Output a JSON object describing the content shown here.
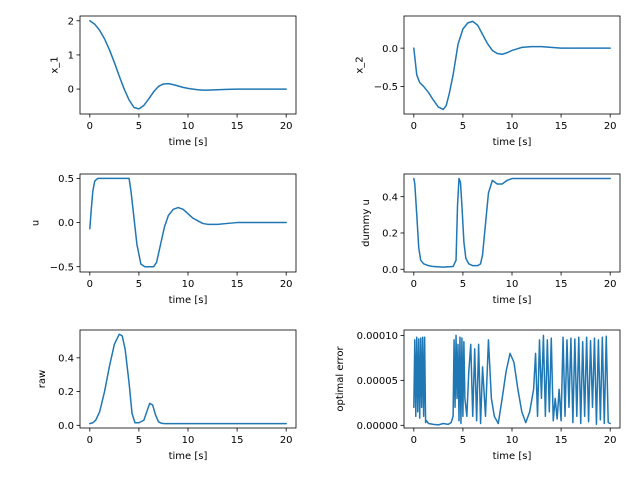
{
  "line_color": "#1f77b4",
  "chart_data": [
    {
      "type": "line",
      "xlabel": "time [s]",
      "ylabel": "x_1",
      "xlim": [
        -1,
        21
      ],
      "ylim": [
        -0.73,
        2.14
      ],
      "xticks": [
        0,
        5,
        10,
        15,
        20
      ],
      "yticks": [
        0,
        1,
        2
      ],
      "grid": false,
      "series": [
        {
          "name": "x_1",
          "x": [
            0,
            0.5,
            1,
            1.5,
            2,
            2.5,
            3,
            3.5,
            4,
            4.5,
            5,
            5.5,
            6,
            6.5,
            7,
            7.5,
            8,
            8.5,
            9,
            9.5,
            10,
            10.5,
            11,
            11.5,
            12,
            13,
            14,
            15,
            16,
            17,
            18,
            19,
            20
          ],
          "y": [
            2.0,
            1.9,
            1.72,
            1.47,
            1.15,
            0.78,
            0.38,
            0.0,
            -0.32,
            -0.54,
            -0.58,
            -0.48,
            -0.29,
            -0.08,
            0.08,
            0.15,
            0.16,
            0.13,
            0.09,
            0.05,
            0.02,
            0.0,
            -0.02,
            -0.03,
            -0.03,
            -0.02,
            -0.01,
            0.0,
            0.0,
            0.0,
            0.0,
            0.0,
            0.0
          ]
        }
      ]
    },
    {
      "type": "line",
      "xlabel": "time [s]",
      "ylabel": "x_2",
      "xlim": [
        -1,
        21
      ],
      "ylim": [
        -0.86,
        0.42
      ],
      "xticks": [
        0,
        5,
        10,
        15,
        20
      ],
      "yticks": [
        -0.5,
        0.0
      ],
      "ytick_labels": [
        "−0.5",
        "0.0"
      ],
      "grid": false,
      "series": [
        {
          "name": "x_2",
          "x": [
            0,
            0.3,
            0.6,
            1,
            1.5,
            2,
            2.5,
            3,
            3.3,
            3.6,
            4,
            4.5,
            5,
            5.5,
            6,
            6.5,
            7,
            7.5,
            8,
            8.5,
            9,
            9.5,
            10,
            10.5,
            11,
            12,
            13,
            14,
            15,
            16,
            17,
            18,
            19,
            20
          ],
          "y": [
            0.0,
            -0.35,
            -0.45,
            -0.5,
            -0.58,
            -0.68,
            -0.77,
            -0.8,
            -0.75,
            -0.6,
            -0.35,
            0.05,
            0.25,
            0.33,
            0.35,
            0.3,
            0.18,
            0.06,
            -0.03,
            -0.07,
            -0.08,
            -0.06,
            -0.03,
            -0.01,
            0.01,
            0.02,
            0.02,
            0.01,
            0.0,
            0.0,
            0.0,
            0.0,
            0.0,
            0.0
          ]
        }
      ]
    },
    {
      "type": "line",
      "xlabel": "time [s]",
      "ylabel": "u",
      "xlim": [
        -1,
        21
      ],
      "ylim": [
        -0.56,
        0.55
      ],
      "xticks": [
        0,
        5,
        10,
        15,
        20
      ],
      "yticks": [
        -0.5,
        0.0,
        0.5
      ],
      "ytick_labels": [
        "−0.5",
        "0.0",
        "0.5"
      ],
      "grid": false,
      "series": [
        {
          "name": "u",
          "x": [
            0,
            0.15,
            0.3,
            0.5,
            0.8,
            1,
            2,
            3,
            4,
            4.2,
            4.5,
            4.8,
            5.2,
            5.6,
            6,
            6.5,
            6.8,
            7.2,
            7.6,
            8,
            8.5,
            9,
            9.5,
            10,
            10.5,
            11,
            11.5,
            12,
            13,
            14,
            15,
            16,
            17,
            18,
            19,
            20
          ],
          "y": [
            -0.07,
            0.15,
            0.35,
            0.47,
            0.5,
            0.5,
            0.5,
            0.5,
            0.5,
            0.35,
            0.05,
            -0.25,
            -0.47,
            -0.5,
            -0.5,
            -0.5,
            -0.45,
            -0.25,
            -0.05,
            0.08,
            0.15,
            0.17,
            0.15,
            0.1,
            0.05,
            0.02,
            -0.01,
            -0.02,
            -0.02,
            -0.01,
            0.0,
            0.0,
            0.0,
            0.0,
            0.0,
            0.0
          ]
        }
      ]
    },
    {
      "type": "line",
      "xlabel": "time [s]",
      "ylabel": "dummy u",
      "xlim": [
        -1,
        21
      ],
      "ylim": [
        -0.015,
        0.525
      ],
      "xticks": [
        0,
        5,
        10,
        15,
        20
      ],
      "yticks": [
        0.0,
        0.2,
        0.4
      ],
      "ytick_labels": [
        "0.0",
        "0.2",
        "0.4"
      ],
      "grid": false,
      "series": [
        {
          "name": "dummy u",
          "x": [
            0,
            0.1,
            0.3,
            0.5,
            0.7,
            1,
            1.5,
            2,
            3,
            4,
            4.3,
            4.45,
            4.6,
            4.75,
            4.9,
            5.1,
            5.3,
            5.6,
            6,
            6.5,
            6.8,
            7,
            7.3,
            7.6,
            8,
            8.5,
            9,
            9.5,
            10,
            11,
            12,
            14,
            16,
            18,
            20
          ],
          "y": [
            0.5,
            0.47,
            0.3,
            0.12,
            0.05,
            0.03,
            0.02,
            0.015,
            0.012,
            0.015,
            0.05,
            0.35,
            0.5,
            0.48,
            0.35,
            0.15,
            0.06,
            0.03,
            0.02,
            0.02,
            0.03,
            0.08,
            0.25,
            0.42,
            0.49,
            0.47,
            0.47,
            0.49,
            0.5,
            0.5,
            0.5,
            0.5,
            0.5,
            0.5,
            0.5
          ]
        }
      ]
    },
    {
      "type": "line",
      "xlabel": "time [s]",
      "ylabel": "raw",
      "xlim": [
        -1,
        21
      ],
      "ylim": [
        -0.016,
        0.565
      ],
      "xticks": [
        0,
        5,
        10,
        15,
        20
      ],
      "yticks": [
        0.0,
        0.2,
        0.4
      ],
      "ytick_labels": [
        "0.0",
        "0.2",
        "0.4"
      ],
      "grid": false,
      "series": [
        {
          "name": "raw",
          "x": [
            0,
            0.3,
            0.6,
            1,
            1.5,
            2,
            2.5,
            3,
            3.3,
            3.6,
            4,
            4.3,
            4.6,
            5,
            5.5,
            5.8,
            6.1,
            6.4,
            6.7,
            7,
            7.3,
            7.6,
            8,
            9,
            10,
            12,
            14,
            16,
            18,
            20
          ],
          "y": [
            0.01,
            0.015,
            0.03,
            0.08,
            0.2,
            0.35,
            0.48,
            0.54,
            0.53,
            0.45,
            0.25,
            0.07,
            0.015,
            0.015,
            0.03,
            0.08,
            0.13,
            0.12,
            0.06,
            0.02,
            0.012,
            0.01,
            0.01,
            0.01,
            0.01,
            0.01,
            0.01,
            0.01,
            0.01,
            0.01
          ]
        }
      ]
    },
    {
      "type": "line",
      "xlabel": "time [s]",
      "ylabel": "optimal error",
      "xlim": [
        -1,
        21
      ],
      "ylim": [
        -3e-06,
        0.000106
      ],
      "xticks": [
        0,
        5,
        10,
        15,
        20
      ],
      "yticks": [
        0.0,
        5e-05,
        0.0001
      ],
      "ytick_labels": [
        "0.00000",
        "0.00005",
        "0.00010"
      ],
      "grid": false,
      "series": [
        {
          "name": "optimal error",
          "x": [
            0,
            0.1,
            0.2,
            0.3,
            0.4,
            0.5,
            0.6,
            0.7,
            0.8,
            0.9,
            1.0,
            1.1,
            1.2,
            1.3,
            1.5,
            2,
            2.5,
            3,
            3.5,
            3.8,
            4.0,
            4.1,
            4.2,
            4.3,
            4.4,
            4.5,
            4.6,
            4.7,
            4.8,
            4.9,
            5.0,
            5.1,
            5.2,
            5.4,
            5.6,
            5.8,
            6.0,
            6.2,
            6.4,
            6.6,
            6.8,
            7.0,
            7.3,
            7.6,
            7.9,
            8.2,
            8.6,
            9,
            9.4,
            9.8,
            10.2,
            10.6,
            11,
            11.4,
            11.8,
            12.2,
            12.4,
            12.6,
            12.8,
            13.0,
            13.2,
            13.4,
            13.6,
            13.8,
            14.0,
            14.2,
            14.4,
            14.6,
            14.8,
            15.0,
            15.2,
            15.4,
            15.6,
            15.8,
            16.0,
            16.2,
            16.4,
            16.6,
            16.8,
            17.0,
            17.2,
            17.4,
            17.6,
            17.8,
            18.0,
            18.2,
            18.4,
            18.6,
            18.8,
            19.0,
            19.2,
            19.4,
            19.6,
            19.8,
            20
          ],
          "y": [
            2e-05,
            9.5e-05,
            1e-05,
            9.8e-05,
            1.5e-05,
            9.6e-05,
            8e-06,
            9.7e-05,
            2e-05,
            9.8e-05,
            1e-05,
            9.8e-05,
            3e-06,
            5e-06,
            2e-06,
            1e-06,
            5e-07,
            2e-06,
            1e-06,
            3e-06,
            1e-05,
            9.5e-05,
            2e-05,
            0.0001,
            3e-05,
            9e-05,
            5e-06,
            9.8e-05,
            2e-06,
            9.7e-05,
            1e-05,
            9.3e-05,
            3e-05,
            1e-05,
            6e-05,
            9e-05,
            1e-05,
            8.5e-05,
            5e-06,
            9e-05,
            2e-06,
            6.5e-05,
            1e-05,
            9.5e-05,
            3e-05,
            1e-05,
            2e-06,
            3e-05,
            6e-05,
            8e-05,
            7e-05,
            4e-05,
            1.5e-05,
            3e-06,
            1.5e-05,
            4e-05,
            8e-05,
            1e-05,
            9.5e-05,
            3e-05,
            0.0001,
            1e-05,
            9.5e-05,
            1.5e-05,
            9.7e-05,
            5e-06,
            3e-05,
            7e-06,
            4e-05,
            5e-06,
            9.8e-05,
            1e-05,
            9.5e-05,
            2e-05,
            9.7e-05,
            3e-06,
            9.6e-05,
            1e-05,
            9.8e-05,
            2e-06,
            9.3e-05,
            1e-05,
            9.8e-05,
            4e-06,
            9.4e-05,
            2e-05,
            9.7e-05,
            1e-06,
            9.5e-05,
            6e-06,
            9.8e-05,
            2e-06,
            9.9e-05,
            3e-06,
            2e-06
          ]
        }
      ]
    }
  ]
}
